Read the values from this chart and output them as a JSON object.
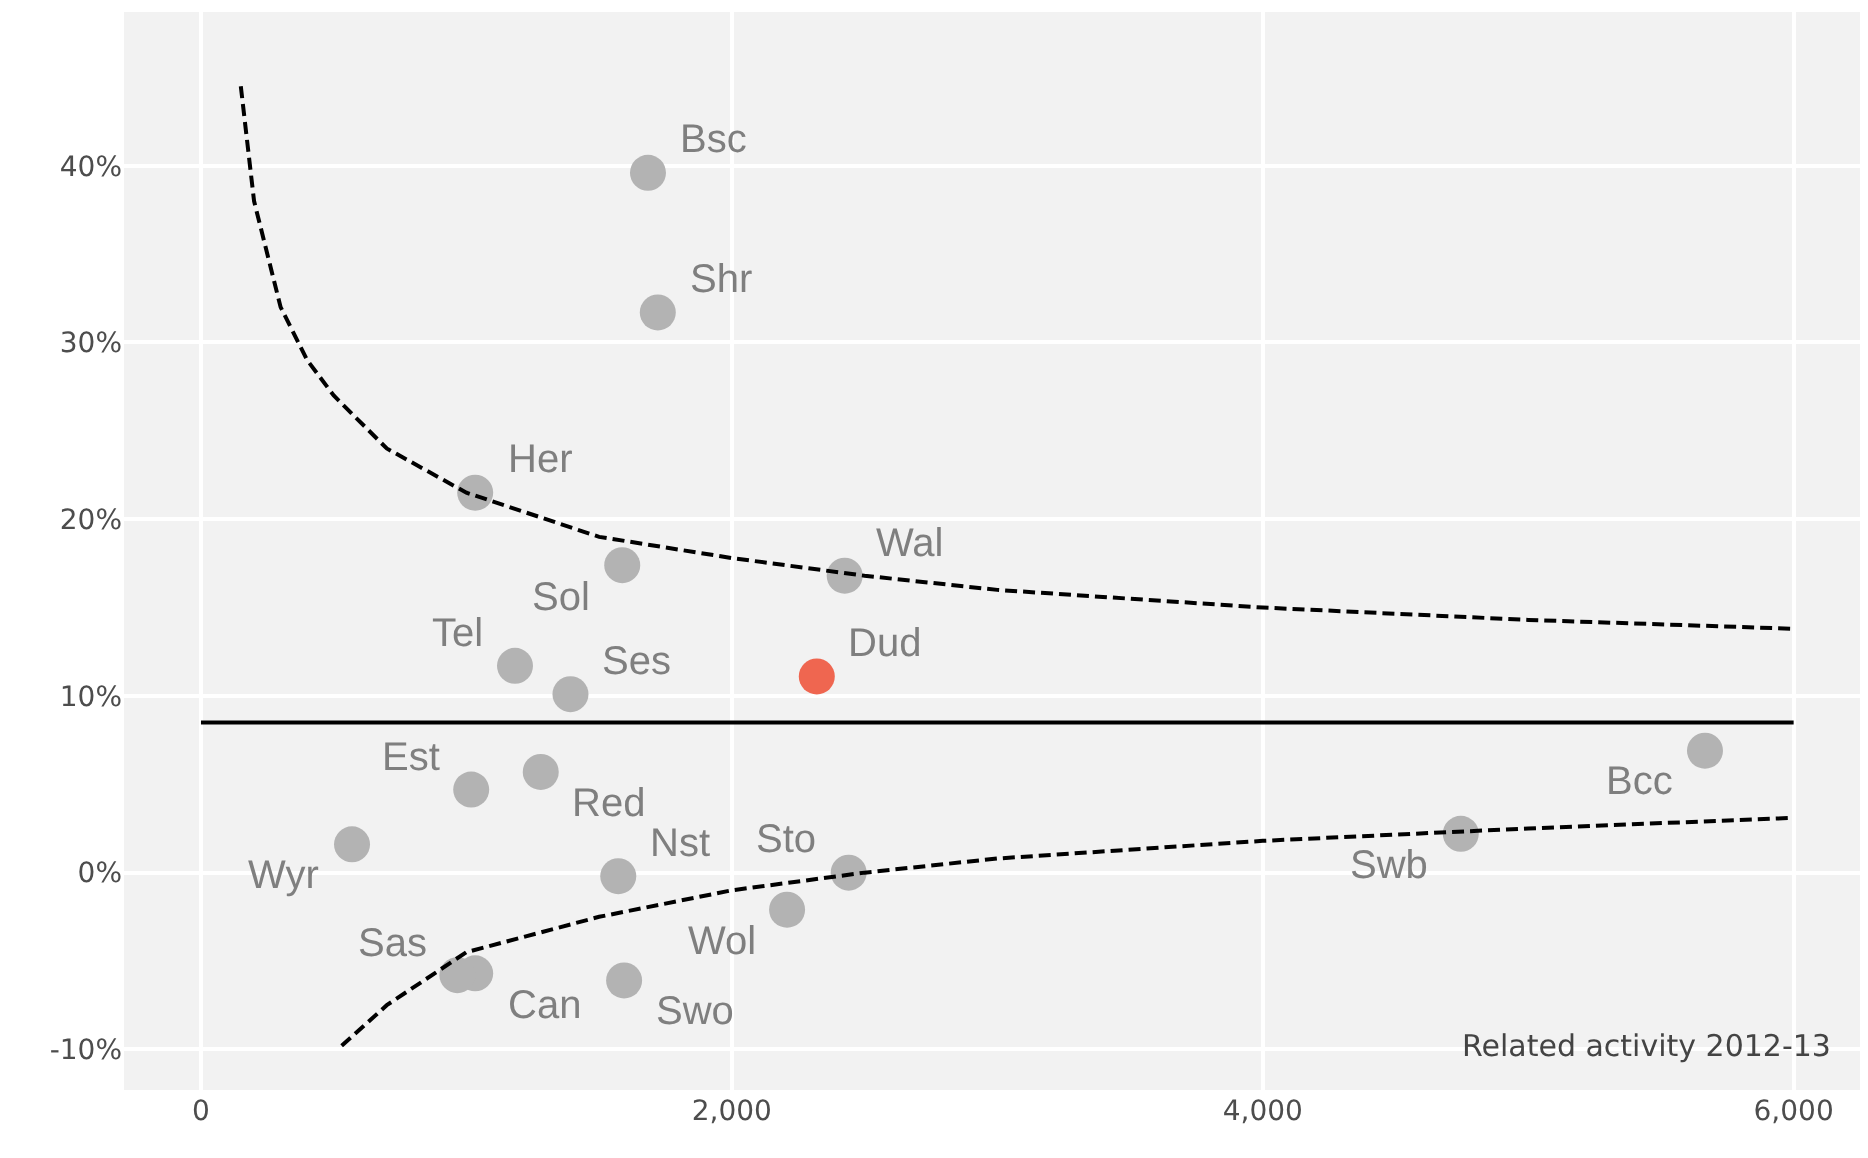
{
  "chart_data": {
    "type": "scatter",
    "xlim": [
      -290,
      6250
    ],
    "xticks": [
      {
        "value": 0,
        "label": "0"
      },
      {
        "value": 2000,
        "label": "2,000"
      },
      {
        "value": 4000,
        "label": "4,000"
      },
      {
        "value": 6000,
        "label": "6,000"
      }
    ],
    "ylim": [
      -12.3,
      48.7
    ],
    "yticks": [
      {
        "value": -10,
        "label": "-10%"
      },
      {
        "value": 0,
        "label": "0%"
      },
      {
        "value": 10,
        "label": "10%"
      },
      {
        "value": 20,
        "label": "20%"
      },
      {
        "value": 30,
        "label": "30%"
      },
      {
        "value": 40,
        "label": "40%"
      }
    ],
    "grid": true,
    "marker": "circle",
    "series": [
      {
        "color": "#b3b3b3",
        "x": [
          1684,
          1721,
          1033,
          1587,
          2425,
          1183,
          1392,
          1280,
          1018,
          569,
          1572,
          2440,
          2208,
          1033,
          966,
          1594,
          4746,
          5666
        ],
        "values": [
          39.6,
          31.7,
          21.5,
          17.4,
          16.8,
          11.7,
          10.1,
          5.7,
          4.7,
          1.6,
          -0.2,
          0,
          -2.1,
          -5.7,
          -5.8,
          -6.1,
          2.2,
          6.9
        ]
      },
      {
        "color": "#ef6650",
        "x": [
          2320
        ],
        "values": [
          11.1
        ]
      },
      {
        "type": "line",
        "color": "#000000",
        "line_style": "dashed",
        "marker": "none",
        "x": [
          150,
          200,
          300,
          400,
          500,
          700,
          1000,
          1500,
          2000,
          2500,
          3000,
          3500,
          4000,
          5000,
          6000
        ],
        "values": [
          44.5,
          38,
          32,
          29,
          27,
          24,
          21.5,
          19,
          17.8,
          16.8,
          16,
          15.5,
          15,
          14.3,
          13.8
        ]
      },
      {
        "type": "line",
        "color": "#000000",
        "line_style": "dashed",
        "marker": "none",
        "x": [
          530,
          700,
          1000,
          1500,
          2000,
          2500,
          3000,
          4000,
          5000,
          6000
        ],
        "values": [
          -9.8,
          -7.5,
          -4.5,
          -2.5,
          -1,
          0,
          0.8,
          1.8,
          2.5,
          3.1
        ]
      }
    ],
    "ref_lines": [
      {
        "axis": "y",
        "value": 8.5,
        "color": "#000000"
      }
    ],
    "annotations": [
      {
        "text": "Bsc",
        "x": 1684,
        "y": 39.6
      },
      {
        "text": "Shr",
        "x": 1721,
        "y": 31.7
      },
      {
        "text": "Her",
        "x": 1033,
        "y": 21.5
      },
      {
        "text": "Sol",
        "x": 1587,
        "y": 17.4
      },
      {
        "text": "Wal",
        "x": 2425,
        "y": 16.8
      },
      {
        "text": "Tel",
        "x": 1183,
        "y": 11.7
      },
      {
        "text": "Ses",
        "x": 1392,
        "y": 10.1
      },
      {
        "text": "Dud",
        "x": 2320,
        "y": 11.1
      },
      {
        "text": "Red",
        "x": 1280,
        "y": 5.7
      },
      {
        "text": "Est",
        "x": 1018,
        "y": 4.7
      },
      {
        "text": "Wyr",
        "x": 569,
        "y": 1.6
      },
      {
        "text": "Nst",
        "x": 1572,
        "y": -0.2
      },
      {
        "text": "Sto",
        "x": 2440,
        "y": 0
      },
      {
        "text": "Wol",
        "x": 2208,
        "y": -2.1
      },
      {
        "text": "Can",
        "x": 1033,
        "y": -5.7
      },
      {
        "text": "Sas",
        "x": 966,
        "y": -5.8
      },
      {
        "text": "Swo",
        "x": 1594,
        "y": -6.1
      },
      {
        "text": "Swb",
        "x": 4746,
        "y": 2.2
      },
      {
        "text": "Bcc",
        "x": 5666,
        "y": 6.9
      },
      "Related activity 2012-13"
    ]
  }
}
